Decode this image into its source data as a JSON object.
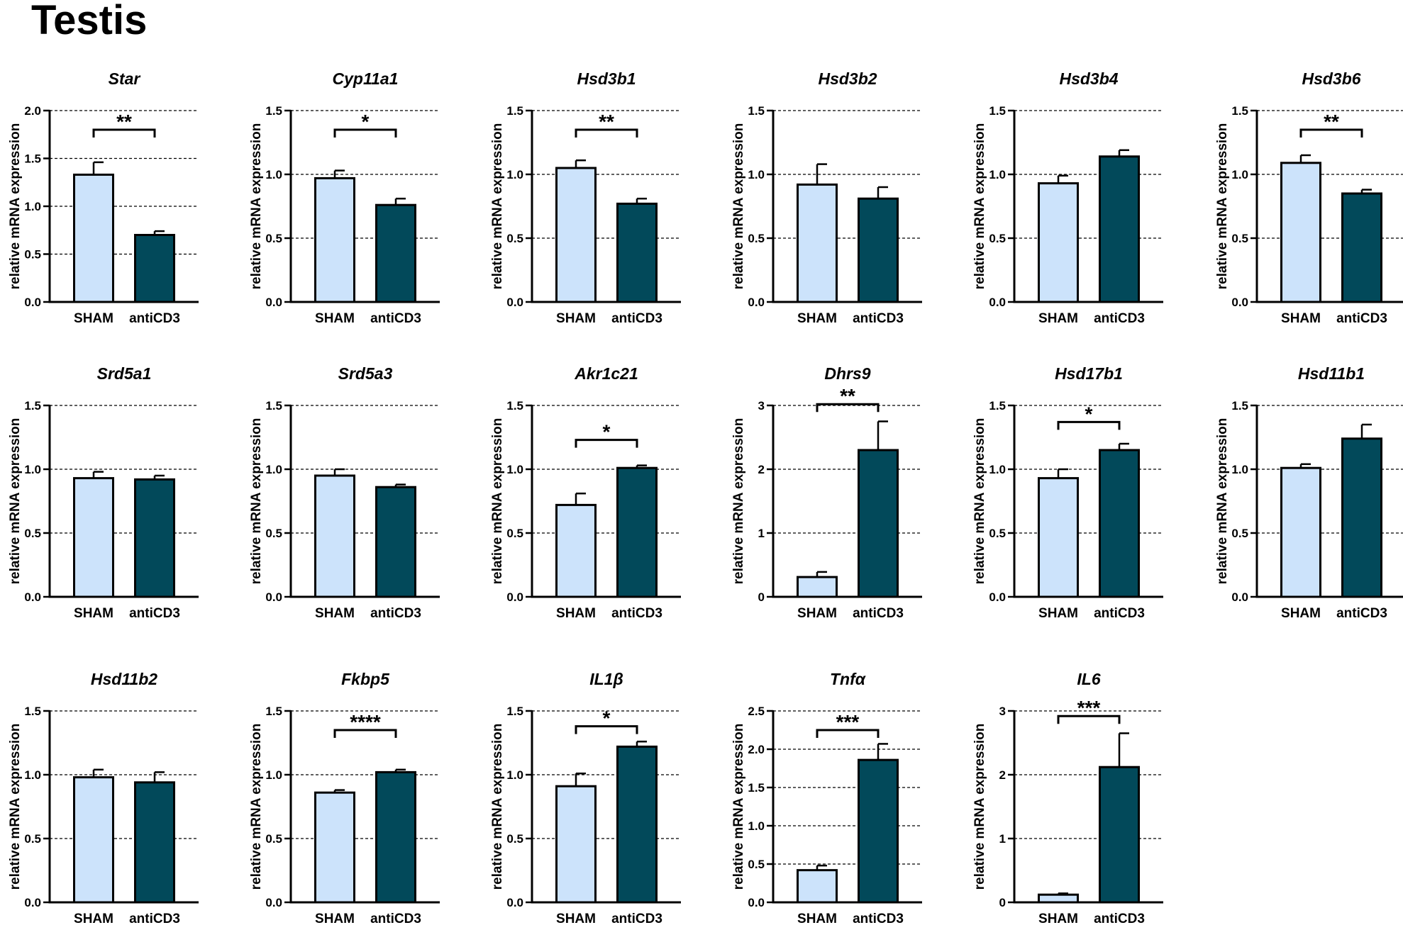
{
  "figure_title": "Testis",
  "colors": {
    "sham": "#cce3fb",
    "anti": "#02495a",
    "grid": "#000000"
  },
  "chart_data": [
    {
      "type": "bar",
      "title": "Star",
      "ylabel": "relative mRNA expression",
      "categories": [
        "SHAM",
        "antiCD3"
      ],
      "values": [
        1.33,
        0.7
      ],
      "errors": [
        0.13,
        0.04
      ],
      "ylim": [
        0,
        2.0
      ],
      "yticks": [
        0.0,
        0.5,
        1.0,
        1.5,
        2.0
      ],
      "ytick_labels": [
        "0.0",
        "0.5",
        "1.0",
        "1.5",
        "2.0"
      ],
      "grid": "dashed",
      "significance": "**",
      "sig_y": 1.8
    },
    {
      "type": "bar",
      "title": "Cyp11a1",
      "ylabel": "relative mRNA expression",
      "categories": [
        "SHAM",
        "antiCD3"
      ],
      "values": [
        0.97,
        0.76
      ],
      "errors": [
        0.06,
        0.05
      ],
      "ylim": [
        0,
        1.5
      ],
      "yticks": [
        0.0,
        0.5,
        1.0,
        1.5
      ],
      "ytick_labels": [
        "0.0",
        "0.5",
        "1.0",
        "1.5"
      ],
      "grid": "dashed",
      "significance": "*",
      "sig_y": 1.35
    },
    {
      "type": "bar",
      "title": "Hsd3b1",
      "ylabel": "relative mRNA expression",
      "categories": [
        "SHAM",
        "antiCD3"
      ],
      "values": [
        1.05,
        0.77
      ],
      "errors": [
        0.06,
        0.04
      ],
      "ylim": [
        0,
        1.5
      ],
      "yticks": [
        0.0,
        0.5,
        1.0,
        1.5
      ],
      "ytick_labels": [
        "0.0",
        "0.5",
        "1.0",
        "1.5"
      ],
      "grid": "dashed",
      "significance": "**",
      "sig_y": 1.35
    },
    {
      "type": "bar",
      "title": "Hsd3b2",
      "ylabel": "relative mRNA expression",
      "categories": [
        "SHAM",
        "antiCD3"
      ],
      "values": [
        0.92,
        0.81
      ],
      "errors": [
        0.16,
        0.09
      ],
      "ylim": [
        0,
        1.5
      ],
      "yticks": [
        0.0,
        0.5,
        1.0,
        1.5
      ],
      "ytick_labels": [
        "0.0",
        "0.5",
        "1.0",
        "1.5"
      ],
      "grid": "dashed",
      "significance": "",
      "sig_y": 0
    },
    {
      "type": "bar",
      "title": "Hsd3b4",
      "ylabel": "relative mRNA expression",
      "categories": [
        "SHAM",
        "antiCD3"
      ],
      "values": [
        0.93,
        1.14
      ],
      "errors": [
        0.06,
        0.05
      ],
      "ylim": [
        0,
        1.5
      ],
      "yticks": [
        0.0,
        0.5,
        1.0,
        1.5
      ],
      "ytick_labels": [
        "0.0",
        "0.5",
        "1.0",
        "1.5"
      ],
      "grid": "dashed",
      "significance": "",
      "sig_y": 0
    },
    {
      "type": "bar",
      "title": "Hsd3b6",
      "ylabel": "relative mRNA expression",
      "categories": [
        "SHAM",
        "antiCD3"
      ],
      "values": [
        1.09,
        0.85
      ],
      "errors": [
        0.06,
        0.03
      ],
      "ylim": [
        0,
        1.5
      ],
      "yticks": [
        0.0,
        0.5,
        1.0,
        1.5
      ],
      "ytick_labels": [
        "0.0",
        "0.5",
        "1.0",
        "1.5"
      ],
      "grid": "dashed",
      "significance": "**",
      "sig_y": 1.35
    },
    {
      "type": "bar",
      "title": "Srd5a1",
      "ylabel": "relative mRNA expression",
      "categories": [
        "SHAM",
        "antiCD3"
      ],
      "values": [
        0.93,
        0.92
      ],
      "errors": [
        0.05,
        0.03
      ],
      "ylim": [
        0,
        1.5
      ],
      "yticks": [
        0.0,
        0.5,
        1.0,
        1.5
      ],
      "ytick_labels": [
        "0.0",
        "0.5",
        "1.0",
        "1.5"
      ],
      "grid": "dashed",
      "significance": "",
      "sig_y": 0
    },
    {
      "type": "bar",
      "title": "Srd5a3",
      "ylabel": "relative mRNA expression",
      "categories": [
        "SHAM",
        "antiCD3"
      ],
      "values": [
        0.95,
        0.86
      ],
      "errors": [
        0.05,
        0.02
      ],
      "ylim": [
        0,
        1.5
      ],
      "yticks": [
        0.0,
        0.5,
        1.0,
        1.5
      ],
      "ytick_labels": [
        "0.0",
        "0.5",
        "1.0",
        "1.5"
      ],
      "grid": "dashed",
      "significance": "",
      "sig_y": 0
    },
    {
      "type": "bar",
      "title": "Akr1c21",
      "ylabel": "relative mRNA expression",
      "categories": [
        "SHAM",
        "antiCD3"
      ],
      "values": [
        0.72,
        1.01
      ],
      "errors": [
        0.09,
        0.02
      ],
      "ylim": [
        0,
        1.5
      ],
      "yticks": [
        0.0,
        0.5,
        1.0,
        1.5
      ],
      "ytick_labels": [
        "0.0",
        "0.5",
        "1.0",
        "1.5"
      ],
      "grid": "dashed",
      "significance": "*",
      "sig_y": 1.23
    },
    {
      "type": "bar",
      "title": "Dhrs9",
      "ylabel": "relative mRNA expression",
      "categories": [
        "SHAM",
        "antiCD3"
      ],
      "values": [
        0.31,
        2.3
      ],
      "errors": [
        0.08,
        0.45
      ],
      "ylim": [
        0,
        3
      ],
      "yticks": [
        0,
        1,
        2,
        3
      ],
      "ytick_labels": [
        "0",
        "1",
        "2",
        "3"
      ],
      "grid": "dashed",
      "significance": "**",
      "sig_y": 3.02
    },
    {
      "type": "bar",
      "title": "Hsd17b1",
      "ylabel": "relative mRNA expression",
      "categories": [
        "SHAM",
        "antiCD3"
      ],
      "values": [
        0.93,
        1.15
      ],
      "errors": [
        0.07,
        0.05
      ],
      "ylim": [
        0,
        1.5
      ],
      "yticks": [
        0.0,
        0.5,
        1.0,
        1.5
      ],
      "ytick_labels": [
        "0.0",
        "0.5",
        "1.0",
        "1.5"
      ],
      "grid": "dashed",
      "significance": "*",
      "sig_y": 1.37
    },
    {
      "type": "bar",
      "title": "Hsd11b1",
      "ylabel": "relative mRNA expression",
      "categories": [
        "SHAM",
        "antiCD3"
      ],
      "values": [
        1.01,
        1.24
      ],
      "errors": [
        0.03,
        0.11
      ],
      "ylim": [
        0,
        1.5
      ],
      "yticks": [
        0.0,
        0.5,
        1.0,
        1.5
      ],
      "ytick_labels": [
        "0.0",
        "0.5",
        "1.0",
        "1.5"
      ],
      "grid": "dashed",
      "significance": "",
      "sig_y": 0
    },
    {
      "type": "bar",
      "title": "Hsd11b2",
      "ylabel": "relative mRNA expression",
      "categories": [
        "SHAM",
        "antiCD3"
      ],
      "values": [
        0.98,
        0.94
      ],
      "errors": [
        0.06,
        0.08
      ],
      "ylim": [
        0,
        1.5
      ],
      "yticks": [
        0.0,
        0.5,
        1.0,
        1.5
      ],
      "ytick_labels": [
        "0.0",
        "0.5",
        "1.0",
        "1.5"
      ],
      "grid": "dashed",
      "significance": "",
      "sig_y": 0
    },
    {
      "type": "bar",
      "title": "Fkbp5",
      "ylabel": "relative mRNA expression",
      "categories": [
        "SHAM",
        "antiCD3"
      ],
      "values": [
        0.86,
        1.02
      ],
      "errors": [
        0.02,
        0.02
      ],
      "ylim": [
        0,
        1.5
      ],
      "yticks": [
        0.0,
        0.5,
        1.0,
        1.5
      ],
      "ytick_labels": [
        "0.0",
        "0.5",
        "1.0",
        "1.5"
      ],
      "grid": "dashed",
      "significance": "****",
      "sig_y": 1.35
    },
    {
      "type": "bar",
      "title": "IL1β",
      "ylabel": "relative mRNA expression",
      "categories": [
        "SHAM",
        "antiCD3"
      ],
      "values": [
        0.91,
        1.22
      ],
      "errors": [
        0.1,
        0.04
      ],
      "ylim": [
        0,
        1.5
      ],
      "yticks": [
        0.0,
        0.5,
        1.0,
        1.5
      ],
      "ytick_labels": [
        "0.0",
        "0.5",
        "1.0",
        "1.5"
      ],
      "grid": "dashed",
      "significance": "*",
      "sig_y": 1.38
    },
    {
      "type": "bar",
      "title": "Tnfα",
      "ylabel": "relative mRNA expression",
      "categories": [
        "SHAM",
        "antiCD3"
      ],
      "values": [
        0.42,
        1.86
      ],
      "errors": [
        0.06,
        0.21
      ],
      "ylim": [
        0,
        2.5
      ],
      "yticks": [
        0.0,
        0.5,
        1.0,
        1.5,
        2.0,
        2.5
      ],
      "ytick_labels": [
        "0.0",
        "0.5",
        "1.0",
        "1.5",
        "2.0",
        "2.5"
      ],
      "grid": "dashed",
      "significance": "***",
      "sig_y": 2.25
    },
    {
      "type": "bar",
      "title": "IL6",
      "ylabel": "relative mRNA expression",
      "categories": [
        "SHAM",
        "antiCD3"
      ],
      "values": [
        0.12,
        2.12
      ],
      "errors": [
        0.02,
        0.53
      ],
      "ylim": [
        0,
        3
      ],
      "yticks": [
        0,
        1,
        2,
        3
      ],
      "ytick_labels": [
        "0",
        "1",
        "2",
        "3"
      ],
      "grid": "dashed",
      "significance": "***",
      "sig_y": 2.92
    }
  ]
}
